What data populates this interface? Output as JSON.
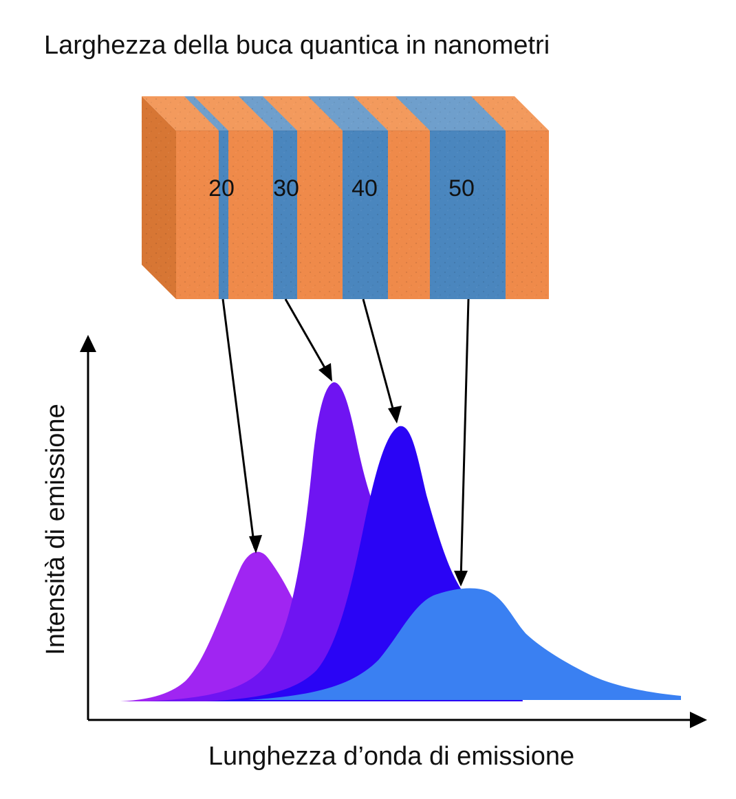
{
  "title": "Larghezza della buca quantica in nanometri",
  "wells": [
    {
      "label": "20"
    },
    {
      "label": "30"
    },
    {
      "label": "40"
    },
    {
      "label": "50"
    }
  ],
  "axes": {
    "y_label": "Intensità di emissione",
    "x_label": "Lunghezza d’onda di emissione"
  },
  "colors": {
    "barrier": "#ef8a4a",
    "barrier_side": "#d9733a",
    "barrier_top": "#f5a468",
    "well": "#4a86be",
    "well_top": "#6a9ecb",
    "peak_20": "#a025f2",
    "peak_30": "#6f14f2",
    "peak_40": "#2a04f5",
    "peak_50": "#3a80f2",
    "axis": "#000000"
  }
}
